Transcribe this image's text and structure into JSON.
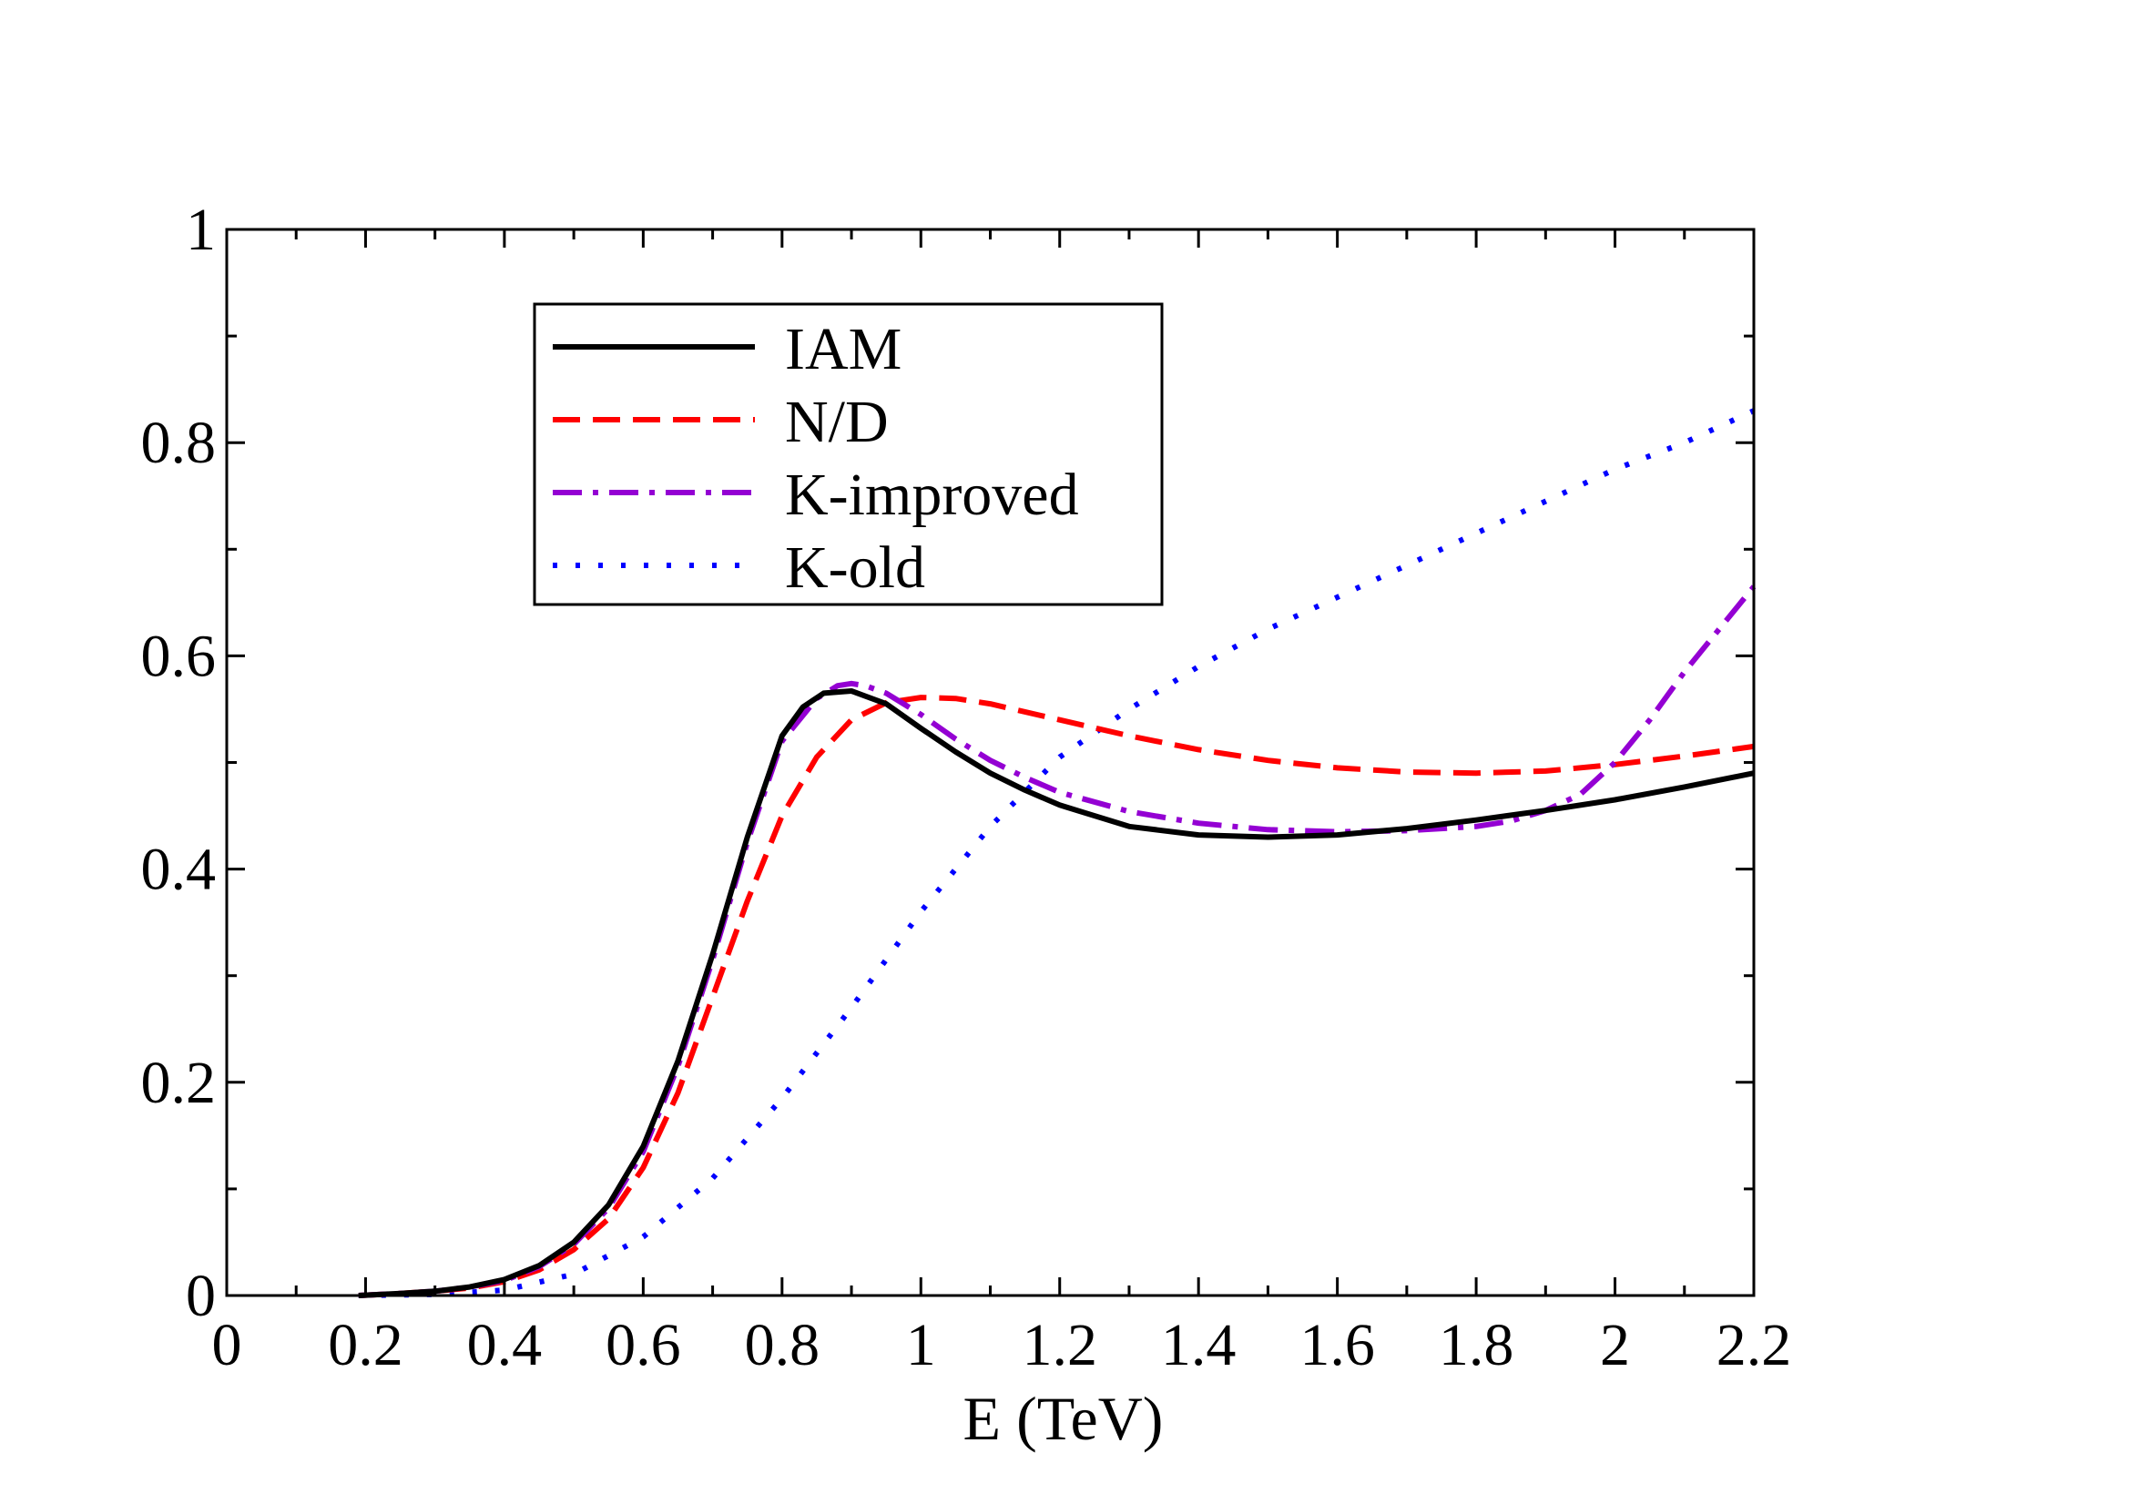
{
  "chart_data": {
    "type": "line",
    "title": "",
    "xlabel": "E (TeV)",
    "ylabel": "",
    "xlim": [
      0,
      2.2
    ],
    "ylim": [
      0,
      1
    ],
    "x_ticks": [
      0,
      0.2,
      0.4,
      0.6,
      0.8,
      1,
      1.2,
      1.4,
      1.6,
      1.8,
      2,
      2.2
    ],
    "x_tick_labels": [
      "0",
      "0.2",
      "0.4",
      "0.6",
      "0.8",
      "1",
      "1.2",
      "1.4",
      "1.6",
      "1.8",
      "2",
      "2.2"
    ],
    "y_ticks": [
      0,
      0.2,
      0.4,
      0.6,
      0.8,
      1
    ],
    "y_tick_labels": [
      "0",
      "0.2",
      "0.4",
      "0.6",
      "0.8",
      "1"
    ],
    "grid": false,
    "legend_position": "top-left",
    "series": [
      {
        "name": "IAM",
        "color": "#000000",
        "style": "solid",
        "x": [
          0.19,
          0.25,
          0.3,
          0.35,
          0.4,
          0.45,
          0.5,
          0.55,
          0.6,
          0.65,
          0.7,
          0.75,
          0.8,
          0.83,
          0.86,
          0.9,
          0.95,
          1.0,
          1.05,
          1.1,
          1.15,
          1.2,
          1.3,
          1.4,
          1.5,
          1.6,
          1.7,
          1.8,
          1.9,
          2.0,
          2.1,
          2.2
        ],
        "y": [
          0.0,
          0.002,
          0.004,
          0.008,
          0.015,
          0.028,
          0.05,
          0.085,
          0.14,
          0.22,
          0.32,
          0.43,
          0.525,
          0.552,
          0.565,
          0.567,
          0.555,
          0.532,
          0.51,
          0.49,
          0.474,
          0.46,
          0.44,
          0.432,
          0.43,
          0.432,
          0.438,
          0.446,
          0.455,
          0.465,
          0.477,
          0.49
        ]
      },
      {
        "name": "N/D",
        "color": "#ff0000",
        "style": "dashed",
        "x": [
          0.19,
          0.25,
          0.3,
          0.35,
          0.4,
          0.45,
          0.5,
          0.55,
          0.6,
          0.65,
          0.7,
          0.75,
          0.8,
          0.85,
          0.9,
          0.95,
          1.0,
          1.05,
          1.1,
          1.2,
          1.3,
          1.4,
          1.5,
          1.6,
          1.7,
          1.8,
          1.9,
          2.0,
          2.1,
          2.2
        ],
        "y": [
          0.0,
          0.002,
          0.004,
          0.007,
          0.013,
          0.024,
          0.043,
          0.072,
          0.12,
          0.19,
          0.28,
          0.37,
          0.45,
          0.505,
          0.54,
          0.556,
          0.561,
          0.56,
          0.555,
          0.54,
          0.525,
          0.512,
          0.502,
          0.495,
          0.491,
          0.49,
          0.492,
          0.498,
          0.506,
          0.515
        ]
      },
      {
        "name": "K-improved",
        "color": "#9400d3",
        "style": "dash-dot",
        "x": [
          0.19,
          0.25,
          0.3,
          0.35,
          0.4,
          0.45,
          0.5,
          0.55,
          0.6,
          0.65,
          0.7,
          0.75,
          0.8,
          0.85,
          0.88,
          0.9,
          0.92,
          0.95,
          1.0,
          1.05,
          1.1,
          1.15,
          1.2,
          1.3,
          1.4,
          1.5,
          1.6,
          1.7,
          1.8,
          1.85,
          1.9,
          1.95,
          2.0,
          2.05,
          2.1,
          2.15,
          2.2
        ],
        "y": [
          0.0,
          0.002,
          0.004,
          0.008,
          0.014,
          0.027,
          0.048,
          0.082,
          0.135,
          0.215,
          0.315,
          0.425,
          0.52,
          0.56,
          0.572,
          0.574,
          0.572,
          0.565,
          0.545,
          0.522,
          0.502,
          0.486,
          0.472,
          0.454,
          0.443,
          0.437,
          0.435,
          0.436,
          0.44,
          0.445,
          0.455,
          0.47,
          0.5,
          0.54,
          0.585,
          0.625,
          0.665
        ]
      },
      {
        "name": "K-old",
        "color": "#0000ff",
        "style": "dotted",
        "x": [
          0.19,
          0.3,
          0.4,
          0.5,
          0.6,
          0.7,
          0.8,
          0.9,
          1.0,
          1.1,
          1.2,
          1.3,
          1.4,
          1.5,
          1.6,
          1.7,
          1.8,
          1.9,
          2.0,
          2.1,
          2.2
        ],
        "y": [
          0.0,
          0.001,
          0.005,
          0.02,
          0.055,
          0.11,
          0.185,
          0.27,
          0.36,
          0.44,
          0.505,
          0.55,
          0.59,
          0.625,
          0.655,
          0.685,
          0.715,
          0.745,
          0.775,
          0.8,
          0.83
        ]
      }
    ]
  }
}
